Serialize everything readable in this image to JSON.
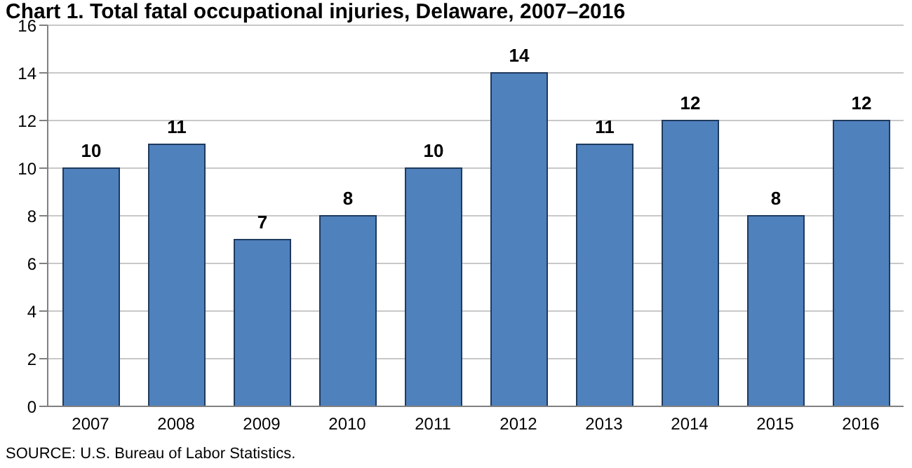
{
  "chart_data": {
    "type": "bar",
    "title": "Chart 1. Total fatal occupational injuries, Delaware, 2007–2016",
    "categories": [
      "2007",
      "2008",
      "2009",
      "2010",
      "2011",
      "2012",
      "2013",
      "2014",
      "2015",
      "2016"
    ],
    "values": [
      10,
      11,
      7,
      8,
      10,
      14,
      11,
      12,
      8,
      12
    ],
    "color": "#4f81bd",
    "ylim": [
      0,
      16
    ],
    "yticks": [
      0,
      2,
      4,
      6,
      8,
      10,
      12,
      14,
      16
    ],
    "grid": "y",
    "data_labels": true,
    "annotations": [
      "SOURCE: U.S. Bureau of Labor Statistics."
    ]
  }
}
